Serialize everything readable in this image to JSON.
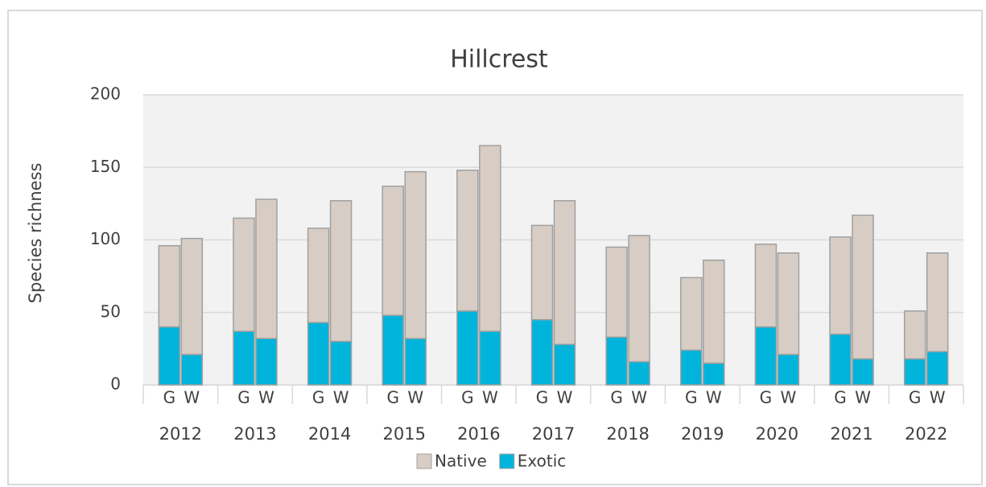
{
  "chart_data": {
    "type": "stacked_bar",
    "title": "Hillcrest",
    "y_label": "Species richness",
    "groups": [
      "2012",
      "2013",
      "2014",
      "2015",
      "2016",
      "2017",
      "2018",
      "2019",
      "2020",
      "2021",
      "2022"
    ],
    "categories": [
      "G",
      "W",
      "G",
      "W",
      "G",
      "W",
      "G",
      "W",
      "G",
      "W",
      "G",
      "W",
      "G",
      "W",
      "G",
      "W",
      "G",
      "W",
      "G",
      "W",
      "G",
      "W"
    ],
    "series": [
      {
        "name": "Native",
        "color": "#d7cdc4",
        "values": [
          56,
          80,
          78,
          96,
          65,
          97,
          89,
          115,
          97,
          128,
          65,
          99,
          62,
          87,
          50,
          71,
          57,
          70,
          67,
          99,
          33,
          68
        ]
      },
      {
        "name": "Exotic",
        "color": "#00b4dc",
        "values": [
          40,
          21,
          37,
          32,
          43,
          30,
          48,
          32,
          51,
          37,
          45,
          28,
          33,
          16,
          24,
          15,
          40,
          21,
          35,
          18,
          18,
          23
        ]
      }
    ],
    "ylim": [
      0,
      200
    ],
    "yticks": [
      0,
      50,
      100,
      150,
      200
    ],
    "grid": true,
    "legend": "bottom"
  }
}
